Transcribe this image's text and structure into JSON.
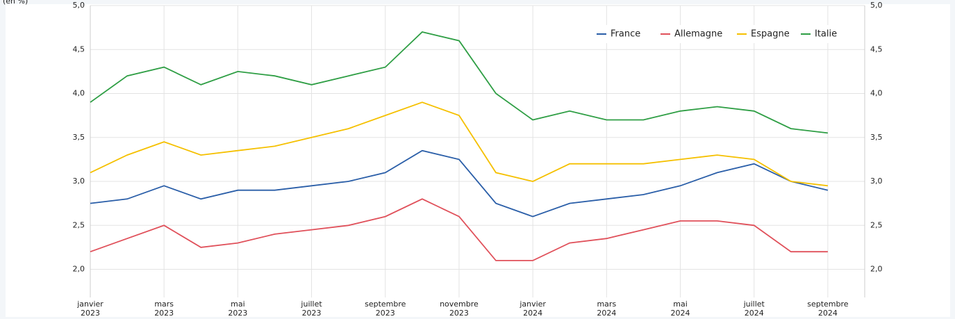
{
  "chart_data": {
    "type": "line",
    "y_label": "(en %)",
    "x": [
      "2023-01",
      "2023-02",
      "2023-03",
      "2023-04",
      "2023-05",
      "2023-06",
      "2023-07",
      "2023-08",
      "2023-09",
      "2023-10",
      "2023-11",
      "2023-12",
      "2024-01",
      "2024-02",
      "2024-03",
      "2024-04",
      "2024-05",
      "2024-06",
      "2024-07",
      "2024-08",
      "2024-09"
    ],
    "xlim": [
      "2023-01",
      "2024-10"
    ],
    "xticks": [
      {
        "value": "2023-01",
        "label": [
          "janvier",
          "2023"
        ]
      },
      {
        "value": "2023-03",
        "label": [
          "mars",
          "2023"
        ]
      },
      {
        "value": "2023-05",
        "label": [
          "mai",
          "2023"
        ]
      },
      {
        "value": "2023-07",
        "label": [
          "juillet",
          "2023"
        ]
      },
      {
        "value": "2023-09",
        "label": [
          "septembre",
          "2023"
        ]
      },
      {
        "value": "2023-11",
        "label": [
          "novembre",
          "2023"
        ]
      },
      {
        "value": "2024-01",
        "label": [
          "janvier",
          "2024"
        ]
      },
      {
        "value": "2024-03",
        "label": [
          "mars",
          "2024"
        ]
      },
      {
        "value": "2024-05",
        "label": [
          "mai",
          "2024"
        ]
      },
      {
        "value": "2024-07",
        "label": [
          "juillet",
          "2024"
        ]
      },
      {
        "value": "2024-09",
        "label": [
          "septembre",
          "2024"
        ]
      }
    ],
    "ylim": [
      1.68,
      5.0
    ],
    "yticks": [
      {
        "value": 2.0,
        "label": "2,0"
      },
      {
        "value": 2.5,
        "label": "2,5"
      },
      {
        "value": 3.0,
        "label": "3,0"
      },
      {
        "value": 3.5,
        "label": "3,5"
      },
      {
        "value": 4.0,
        "label": "4,0"
      },
      {
        "value": 4.5,
        "label": "4,5"
      },
      {
        "value": 5.0,
        "label": "5,0"
      }
    ],
    "grid": true,
    "legend": "top-right",
    "series": [
      {
        "name": "France",
        "color": "#2a5ea8",
        "values": [
          2.75,
          2.8,
          2.95,
          2.8,
          2.9,
          2.9,
          2.95,
          3.0,
          3.1,
          3.35,
          3.25,
          2.75,
          2.6,
          2.75,
          2.8,
          2.85,
          2.95,
          3.1,
          3.2,
          3.0,
          2.9
        ]
      },
      {
        "name": "Allemagne",
        "color": "#e0505a",
        "values": [
          2.2,
          2.35,
          2.5,
          2.25,
          2.3,
          2.4,
          2.45,
          2.5,
          2.6,
          2.8,
          2.6,
          2.1,
          2.1,
          2.3,
          2.35,
          2.45,
          2.55,
          2.55,
          2.5,
          2.2,
          2.2
        ]
      },
      {
        "name": "Espagne",
        "color": "#f5c000",
        "values": [
          3.1,
          3.3,
          3.45,
          3.3,
          3.35,
          3.4,
          3.5,
          3.6,
          3.75,
          3.9,
          3.75,
          3.1,
          3.0,
          3.2,
          3.2,
          3.2,
          3.25,
          3.3,
          3.25,
          3.0,
          2.95
        ]
      },
      {
        "name": "Italie",
        "color": "#2e9e44",
        "values": [
          3.9,
          4.2,
          4.3,
          4.1,
          4.25,
          4.2,
          4.1,
          4.2,
          4.3,
          4.7,
          4.6,
          4.0,
          3.7,
          3.8,
          3.7,
          3.7,
          3.8,
          3.85,
          3.8,
          3.6,
          3.55
        ]
      }
    ]
  }
}
